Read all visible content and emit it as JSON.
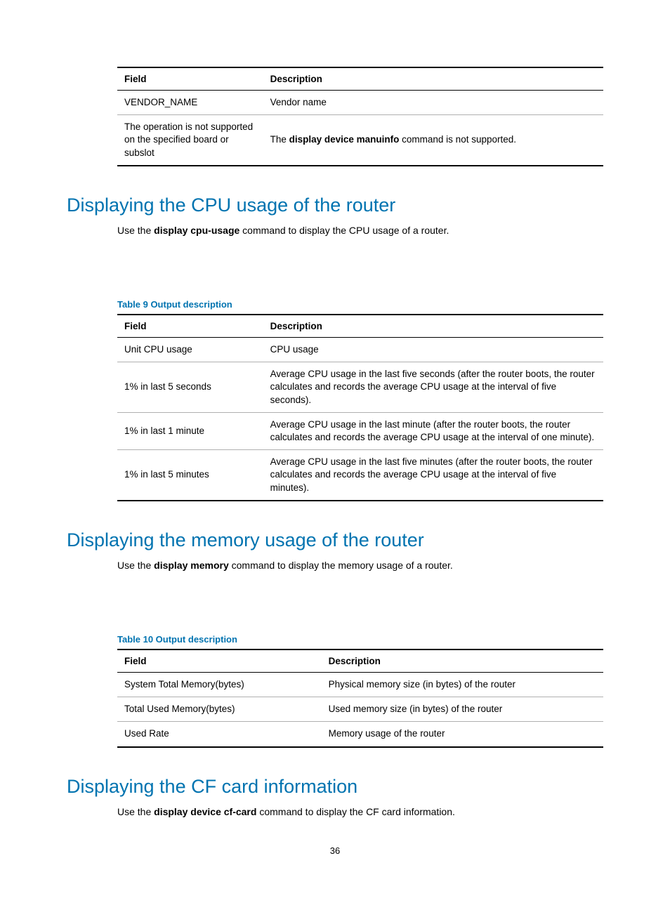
{
  "pageNumber": "36",
  "topTable": {
    "headers": {
      "field": "Field",
      "desc": "Description"
    },
    "colWidth1": "30%",
    "rows": [
      {
        "field": "VENDOR_NAME",
        "desc": "Vendor name"
      },
      {
        "field": "The operation is not supported on the specified board or subslot",
        "desc_pre": "The ",
        "desc_bold": "display device manuinfo",
        "desc_post": " command is not supported."
      }
    ]
  },
  "cpuSection": {
    "heading": "Displaying the CPU usage of the router",
    "lead_pre": "Use the ",
    "lead_bold": "display cpu-usage",
    "lead_post": " command to display the CPU usage of a router.",
    "tableCaption": "Table 9 Output description",
    "headers": {
      "field": "Field",
      "desc": "Description"
    },
    "colWidth1": "30%",
    "rows": [
      {
        "field": "Unit CPU usage",
        "desc": "CPU usage"
      },
      {
        "field": "1% in last 5 seconds",
        "desc": "Average CPU usage in the last five seconds (after the router boots, the router calculates and records the average CPU usage at the interval of five seconds)."
      },
      {
        "field": "1% in last 1 minute",
        "desc": "Average CPU usage in the last minute (after the router boots, the router calculates and records the average CPU usage at the interval of one minute)."
      },
      {
        "field": "1% in last 5 minutes",
        "desc": "Average CPU usage in the last five minutes (after the router boots, the router calculates and records the average CPU usage at the interval of five minutes)."
      }
    ]
  },
  "memSection": {
    "heading": "Displaying the memory usage of the router",
    "lead_pre": "Use the ",
    "lead_bold": "display memory",
    "lead_post": " command to display the memory usage of a router.",
    "tableCaption": "Table 10 Output description",
    "headers": {
      "field": "Field",
      "desc": "Description"
    },
    "colWidth1": "42%",
    "rows": [
      {
        "field": "System Total Memory(bytes)",
        "desc": "Physical memory size (in bytes) of the router"
      },
      {
        "field": "Total Used Memory(bytes)",
        "desc": "Used memory size (in bytes) of the router"
      },
      {
        "field": "Used Rate",
        "desc": "Memory usage of the router"
      }
    ]
  },
  "cfSection": {
    "heading": "Displaying the CF card information",
    "lead_pre": "Use the ",
    "lead_bold": "display device cf-card",
    "lead_post": " command to display the CF card information."
  }
}
